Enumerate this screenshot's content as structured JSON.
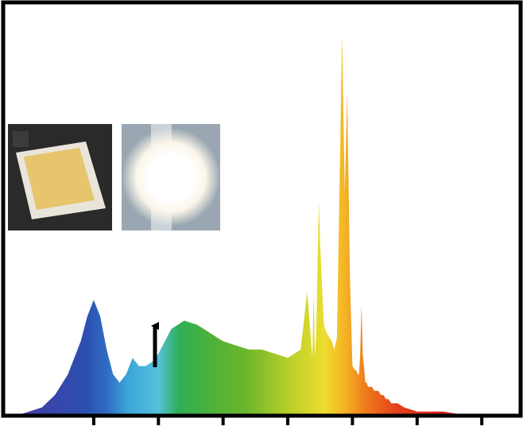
{
  "chart_data": {
    "type": "area",
    "title": "",
    "xlabel": "",
    "ylabel": "",
    "x_unit": "nm",
    "xlim": [
      380,
      780
    ],
    "ylim": [
      0,
      1
    ],
    "grid": false,
    "legend": "none",
    "x_ticks": [
      450,
      500,
      550,
      600,
      650,
      700,
      750
    ],
    "tick_labels_shown": false,
    "series": [
      {
        "x": [
          380,
          390,
          400,
          410,
          420,
          430,
          440,
          445,
          450,
          455,
          460,
          465,
          470,
          475,
          480,
          485,
          490,
          495,
          500,
          505,
          510,
          515,
          520,
          530,
          540,
          545,
          550,
          560,
          570,
          580,
          590,
          600,
          610,
          615,
          619,
          620,
          621,
          622,
          624,
          625,
          627,
          628,
          630,
          632,
          634,
          636,
          638,
          640,
          642,
          644,
          646,
          648,
          650,
          652,
          653,
          654,
          655,
          656,
          657,
          658,
          660,
          661,
          662,
          663,
          665,
          667,
          670,
          672,
          674,
          676,
          678,
          680,
          685,
          690,
          700,
          720,
          740,
          760,
          780
        ],
        "y": [
          0.0,
          0.0,
          0.01,
          0.02,
          0.05,
          0.1,
          0.18,
          0.24,
          0.28,
          0.24,
          0.16,
          0.1,
          0.08,
          0.1,
          0.14,
          0.12,
          0.12,
          0.13,
          0.15,
          0.18,
          0.21,
          0.22,
          0.23,
          0.22,
          0.2,
          0.19,
          0.18,
          0.17,
          0.16,
          0.16,
          0.15,
          0.14,
          0.16,
          0.3,
          0.14,
          0.3,
          0.14,
          0.2,
          0.52,
          0.42,
          0.28,
          0.22,
          0.2,
          0.19,
          0.18,
          0.16,
          0.19,
          0.56,
          0.92,
          0.54,
          0.78,
          0.34,
          0.12,
          0.11,
          0.11,
          0.1,
          0.1,
          0.15,
          0.27,
          0.15,
          0.08,
          0.08,
          0.07,
          0.07,
          0.07,
          0.06,
          0.06,
          0.05,
          0.05,
          0.04,
          0.04,
          0.03,
          0.03,
          0.02,
          0.01,
          0.01,
          0.0,
          0.0,
          0.0
        ],
        "fill": "visible-spectrum-gradient"
      }
    ],
    "annotations": [
      {
        "type": "arrow",
        "at_x": 480,
        "direction": "up"
      },
      {
        "type": "inset-photo",
        "subject": "led-package-off",
        "colors": {
          "bg": "#2a2a2a",
          "package": "#e9e5da",
          "phosphor": "#e6c56c"
        }
      },
      {
        "type": "inset-photo",
        "subject": "led-package-lit",
        "colors": {
          "bg": "#8a99a6",
          "glow": "#ffffff"
        }
      }
    ],
    "colors": {
      "axis": "#000000",
      "spectrum": [
        "#5b3fa6",
        "#2c4fb1",
        "#3aa6d8",
        "#56c0dc",
        "#2fae55",
        "#6cb62b",
        "#b7cf2a",
        "#ecdd2e",
        "#f5b425",
        "#ee7c1d",
        "#e5411c",
        "#d4201c",
        "#c41a1a"
      ]
    }
  }
}
